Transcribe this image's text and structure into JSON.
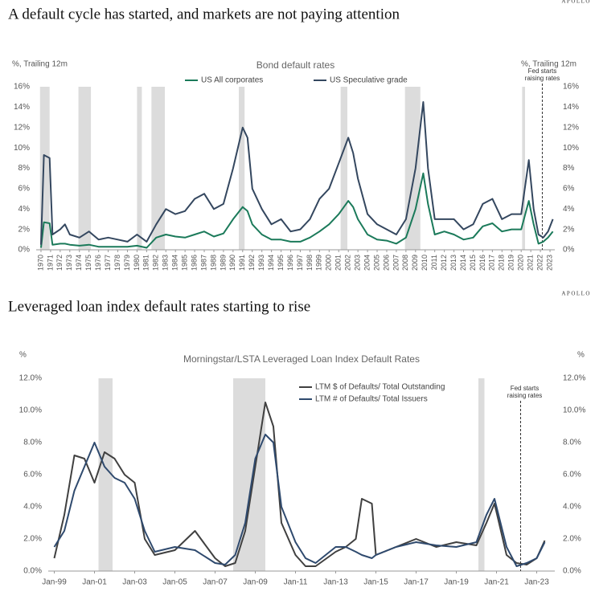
{
  "chart_data": [
    {
      "type": "line",
      "heading": "A default cycle has started, and markets are not paying attention",
      "title": "Bond default rates",
      "ylabel": "%, Trailing 12m",
      "y2label": "%, Trailing 12m",
      "source": "APOLLO",
      "annotation": {
        "text": "Fed starts raising rates",
        "x": 2022.2
      },
      "recessions": [
        [
          1969.9,
          1970.9
        ],
        [
          1973.9,
          1975.2
        ],
        [
          1980.0,
          1980.5
        ],
        [
          1981.5,
          1982.9
        ],
        [
          1990.6,
          1991.2
        ],
        [
          2001.2,
          2001.9
        ],
        [
          2007.9,
          2009.5
        ],
        [
          2020.1,
          2020.4
        ]
      ],
      "x": [
        1970,
        1970.3,
        1970.9,
        1971.2,
        1972,
        1972.5,
        1973,
        1974,
        1975,
        1976,
        1977,
        1978,
        1979,
        1980,
        1981,
        1982,
        1983,
        1984,
        1985,
        1986,
        1987,
        1988,
        1989,
        1990,
        1991,
        1991.5,
        1992,
        1993,
        1994,
        1995,
        1996,
        1997,
        1998,
        1999,
        2000,
        2001,
        2002,
        2002.5,
        2003,
        2004,
        2005,
        2006,
        2007,
        2008,
        2009,
        2009.8,
        2010.3,
        2011,
        2012,
        2013,
        2014,
        2015,
        2016,
        2017,
        2018,
        2019,
        2020,
        2020.8,
        2021.3,
        2021.8,
        2022.3,
        2022.8,
        2023.3
      ],
      "series": [
        {
          "name": "US All corporates",
          "color": "#1b7a5a",
          "values": [
            0.2,
            2.7,
            2.6,
            0.5,
            0.6,
            0.6,
            0.5,
            0.4,
            0.5,
            0.3,
            0.3,
            0.3,
            0.3,
            0.4,
            0.2,
            1.2,
            1.5,
            1.3,
            1.2,
            1.5,
            1.8,
            1.3,
            1.6,
            3.0,
            4.2,
            3.8,
            2.5,
            1.5,
            1.0,
            1.0,
            0.8,
            0.8,
            1.2,
            1.8,
            2.5,
            3.5,
            4.8,
            4.2,
            3.0,
            1.5,
            1.0,
            0.9,
            0.6,
            1.2,
            4.0,
            7.5,
            4.5,
            1.5,
            1.8,
            1.5,
            1.0,
            1.2,
            2.3,
            2.6,
            1.8,
            2.0,
            2.0,
            4.8,
            2.5,
            0.6,
            0.8,
            1.2,
            1.8
          ]
        },
        {
          "name": "US Speculative grade",
          "color": "#34475f",
          "values": [
            0.5,
            9.3,
            9.0,
            1.5,
            2.0,
            2.5,
            1.5,
            1.2,
            1.8,
            1.0,
            1.2,
            1.0,
            0.8,
            1.5,
            0.8,
            2.5,
            4.0,
            3.5,
            3.8,
            5.0,
            5.5,
            4.0,
            4.5,
            8.0,
            12.0,
            11.0,
            6.0,
            4.0,
            2.5,
            3.0,
            1.8,
            2.0,
            3.0,
            5.0,
            6.0,
            8.5,
            11.0,
            9.5,
            7.0,
            3.5,
            2.5,
            2.0,
            1.5,
            3.0,
            8.0,
            14.5,
            8.0,
            3.0,
            3.0,
            3.0,
            2.0,
            2.5,
            4.5,
            5.0,
            3.0,
            3.5,
            3.5,
            8.8,
            4.0,
            1.5,
            1.2,
            1.8,
            3.0
          ]
        }
      ],
      "xlim": [
        1969.5,
        2023.5
      ],
      "xticks": [
        1970,
        1971,
        1972,
        1973,
        1974,
        1975,
        1976,
        1977,
        1978,
        1979,
        1980,
        1981,
        1982,
        1983,
        1984,
        1985,
        1986,
        1987,
        1988,
        1989,
        1990,
        1991,
        1992,
        1993,
        1994,
        1995,
        1996,
        1997,
        1998,
        1999,
        2000,
        2001,
        2002,
        2003,
        2004,
        2005,
        2006,
        2007,
        2008,
        2009,
        2010,
        2011,
        2012,
        2013,
        2014,
        2015,
        2016,
        2017,
        2018,
        2019,
        2020,
        2021,
        2022,
        2023
      ],
      "ylim": [
        0,
        16
      ],
      "yticks": [
        {
          "value": 0,
          "label": "0%"
        },
        {
          "value": 2,
          "label": "2%"
        },
        {
          "value": 4,
          "label": "4%"
        },
        {
          "value": 6,
          "label": "6%"
        },
        {
          "value": 8,
          "label": "8%"
        },
        {
          "value": 10,
          "label": "10%"
        },
        {
          "value": 12,
          "label": "12%"
        },
        {
          "value": 14,
          "label": "14%"
        },
        {
          "value": 16,
          "label": "16%"
        }
      ],
      "grid": false
    },
    {
      "type": "line",
      "heading": "Leveraged loan index default rates starting to rise",
      "title": "Morningstar/LSTA Leveraged Loan Index Default Rates",
      "ylabel": "%",
      "y2label": "%",
      "source": "APOLLO",
      "annotation": {
        "text": "Fed starts raising rates",
        "x": 2022.2
      },
      "recessions": [
        [
          2001.2,
          2001.9
        ],
        [
          2007.9,
          2009.5
        ],
        [
          2020.1,
          2020.4
        ]
      ],
      "x": [
        1999,
        1999.5,
        2000,
        2000.5,
        2001,
        2001.5,
        2002,
        2002.5,
        2003,
        2003.5,
        2004,
        2005,
        2006,
        2007,
        2007.5,
        2008,
        2008.5,
        2009,
        2009.5,
        2009.9,
        2010.3,
        2011,
        2011.5,
        2012,
        2013,
        2013.5,
        2014,
        2014.3,
        2014.8,
        2015,
        2016,
        2017,
        2018,
        2019,
        2020,
        2020.5,
        2020.9,
        2021.5,
        2022,
        2022.5,
        2023,
        2023.4
      ],
      "series": [
        {
          "name": "LTM $ of Defaults/ Total Outstanding",
          "color": "#404040",
          "values": [
            0.8,
            3.5,
            7.2,
            7.0,
            5.5,
            7.4,
            7.0,
            6.0,
            5.5,
            2.0,
            1.0,
            1.3,
            2.5,
            0.8,
            0.3,
            0.5,
            2.5,
            6.5,
            10.5,
            9.0,
            3.0,
            1.0,
            0.3,
            0.3,
            1.2,
            1.5,
            2.0,
            4.5,
            4.2,
            1.0,
            1.5,
            2.0,
            1.5,
            1.8,
            1.6,
            3.0,
            4.2,
            1.0,
            0.5,
            0.4,
            0.8,
            1.9
          ]
        },
        {
          "name": "LTM # of Defaults/ Total Issuers",
          "color": "#2f4a6e",
          "values": [
            1.5,
            2.5,
            5.0,
            6.5,
            8.0,
            6.5,
            5.8,
            5.5,
            4.5,
            2.5,
            1.2,
            1.5,
            1.3,
            0.5,
            0.4,
            1.0,
            3.0,
            7.0,
            8.5,
            8.0,
            4.0,
            1.8,
            0.8,
            0.5,
            1.5,
            1.5,
            1.2,
            1.0,
            0.8,
            1.0,
            1.5,
            1.8,
            1.6,
            1.5,
            1.8,
            3.5,
            4.5,
            1.5,
            0.3,
            0.5,
            0.8,
            1.8
          ]
        }
      ],
      "xlim": [
        1998.7,
        2023.9
      ],
      "xticks": [
        {
          "value": 1999,
          "label": "Jan-99"
        },
        {
          "value": 2001,
          "label": "Jan-01"
        },
        {
          "value": 2003,
          "label": "Jan-03"
        },
        {
          "value": 2005,
          "label": "Jan-05"
        },
        {
          "value": 2007,
          "label": "Jan-07"
        },
        {
          "value": 2009,
          "label": "Jan-09"
        },
        {
          "value": 2011,
          "label": "Jan-11"
        },
        {
          "value": 2013,
          "label": "Jan-13"
        },
        {
          "value": 2015,
          "label": "Jan-15"
        },
        {
          "value": 2017,
          "label": "Jan-17"
        },
        {
          "value": 2019,
          "label": "Jan-19"
        },
        {
          "value": 2021,
          "label": "Jan-21"
        },
        {
          "value": 2023,
          "label": "Jan-23"
        }
      ],
      "ylim": [
        0,
        12
      ],
      "yticks": [
        {
          "value": 0,
          "label": "0.0%"
        },
        {
          "value": 2,
          "label": "2.0%"
        },
        {
          "value": 4,
          "label": "4.0%"
        },
        {
          "value": 6,
          "label": "6.0%"
        },
        {
          "value": 8,
          "label": "8.0%"
        },
        {
          "value": 10,
          "label": "10.0%"
        },
        {
          "value": 12,
          "label": "12.0%"
        }
      ],
      "grid": false
    }
  ]
}
